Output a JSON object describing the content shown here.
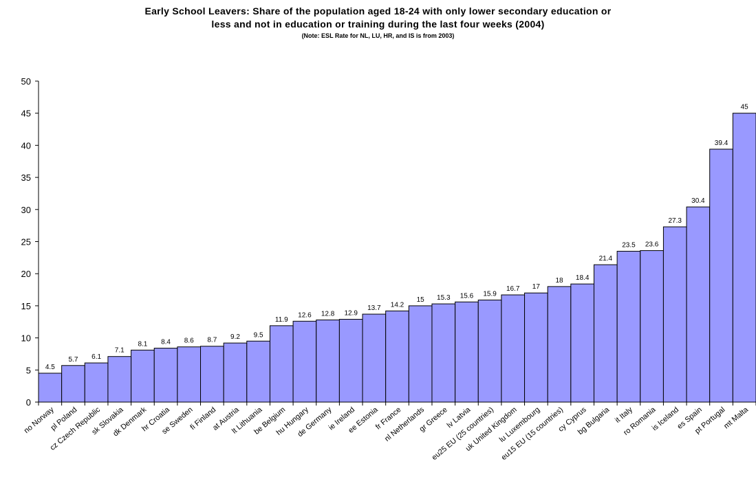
{
  "chart_data": {
    "type": "bar",
    "title": "Early School Leavers: Share of the population aged 18-24 with only lower secondary education or",
    "title_line2": "less and not in education or training during the last four weeks (2004)",
    "subtitle": "(Note: ESL Rate for NL, LU, HR, and IS is from 2003)",
    "xlabel": "",
    "ylabel": "",
    "ylim": [
      0,
      50
    ],
    "yticks": [
      0,
      5,
      10,
      15,
      20,
      25,
      30,
      35,
      40,
      45,
      50
    ],
    "grid": false,
    "bar_color": "#9999ff",
    "categories": [
      "no Norway",
      "pl Poland",
      "cz Czech Republic",
      "sk Slovakia",
      "dk Denmark",
      "hr Croatia",
      "se Sweden",
      "fi Finland",
      "at Austria",
      "lt Lithuania",
      "be Belgium",
      "hu Hungary",
      "de Germany",
      "ie Ireland",
      "ee Estonia",
      "fr France",
      "nl Netherlands",
      "gr Greece",
      "lv Latvia",
      "eu25 EU (25 countries)",
      "uk United Kingdom",
      "lu Luxembourg",
      "eu15 EU (15 countries)",
      "cy Cyprus",
      "bg Bulgaria",
      "it Italy",
      "ro Romania",
      "is Iceland",
      "es Spain",
      "pt Portugal",
      "mt Malta"
    ],
    "values": [
      4.5,
      5.7,
      6.1,
      7.1,
      8.1,
      8.4,
      8.6,
      8.7,
      9.2,
      9.5,
      11.9,
      12.6,
      12.8,
      12.9,
      13.7,
      14.2,
      15,
      15.3,
      15.6,
      15.9,
      16.7,
      17,
      18,
      18.4,
      21.4,
      23.5,
      23.6,
      27.3,
      30.4,
      39.4,
      45
    ]
  }
}
